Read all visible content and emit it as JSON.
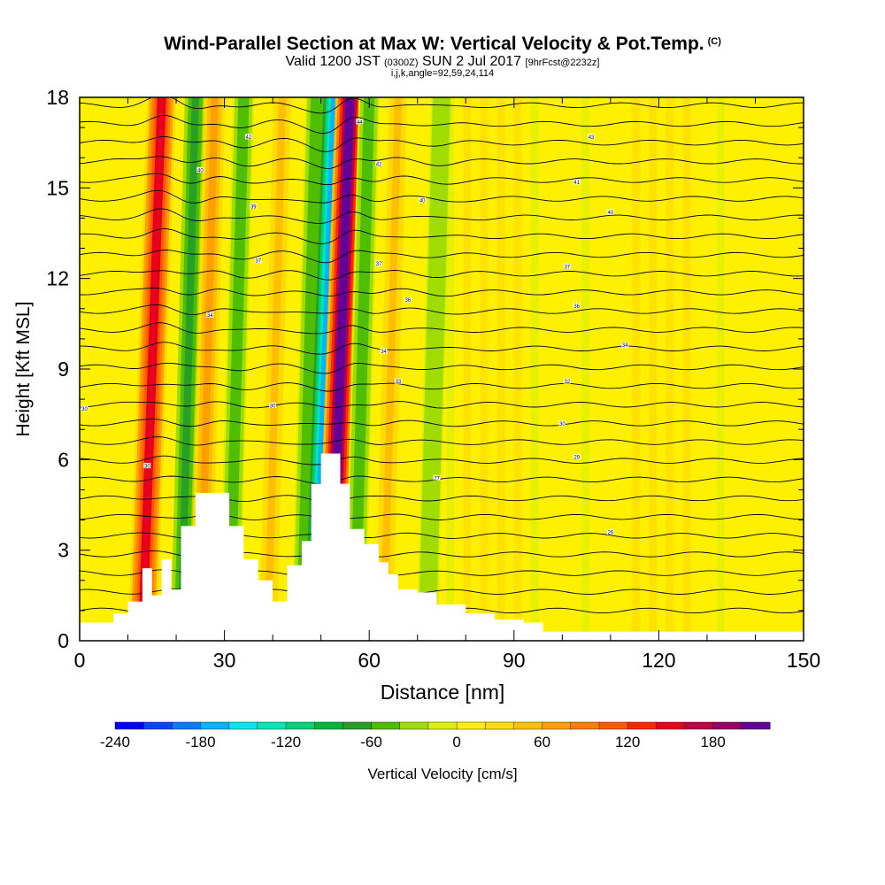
{
  "title": {
    "main": "Wind-Parallel Section at Max W: Vertical Velocity & Pot.Temp.",
    "copyright": "(C)",
    "line2_a": "Valid 1200 JST",
    "line2_b": "(0300Z)",
    "line2_c": "SUN 2 Jul 2017",
    "line2_d": "[9hrFcst@2232z]",
    "line3": "i,j,k,angle=92,59,24,114"
  },
  "chart_data": {
    "type": "heatmap",
    "xlabel": "Distance [nm]",
    "ylabel": "Height [Kft MSL]",
    "xlim": [
      0,
      150
    ],
    "ylim": [
      0,
      18
    ],
    "xticks": [
      0,
      30,
      60,
      90,
      120,
      150
    ],
    "yticks": [
      0,
      3,
      6,
      9,
      12,
      15,
      18
    ],
    "colorbar": {
      "label": "Vertical Velocity [cm/s]",
      "range": [
        -240,
        220
      ],
      "step": 20,
      "ticks": [
        -240,
        -180,
        -120,
        -60,
        0,
        60,
        120,
        180
      ],
      "colors": [
        "#0000ff",
        "#0a46ff",
        "#0a7aff",
        "#00b4ff",
        "#00e6f0",
        "#00e6b4",
        "#00d278",
        "#00b43c",
        "#28a028",
        "#50be00",
        "#a0dc00",
        "#dcf000",
        "#fff000",
        "#ffdc00",
        "#ffbe00",
        "#ffa000",
        "#ff7d00",
        "#ff5a00",
        "#ff2800",
        "#e6001e",
        "#be0046",
        "#960064",
        "#640096"
      ]
    },
    "w_bands_x_nm": [
      {
        "x": 17,
        "w": 140,
        "note": "strong updraft band"
      },
      {
        "x": 24,
        "w": -70
      },
      {
        "x": 28,
        "w": 60
      },
      {
        "x": 34,
        "w": -60
      },
      {
        "x": 42,
        "w": 40
      },
      {
        "x": 49,
        "w": -50
      },
      {
        "x": 53,
        "w": -170,
        "note": "strong downdraft band"
      },
      {
        "x": 56,
        "w": 200,
        "note": "strong updraft band"
      },
      {
        "x": 60,
        "w": -60
      },
      {
        "x": 66,
        "w": 40
      },
      {
        "x": 75,
        "w": -40
      }
    ],
    "terrain_kft": [
      [
        0,
        0.6
      ],
      [
        7,
        0.9
      ],
      [
        10,
        1.3
      ],
      [
        13,
        2.4
      ],
      [
        15,
        1.5
      ],
      [
        17,
        2.7
      ],
      [
        19,
        1.7
      ],
      [
        21,
        3.8
      ],
      [
        24,
        4.9
      ],
      [
        29,
        4.9
      ],
      [
        31,
        3.8
      ],
      [
        34,
        2.7
      ],
      [
        37,
        2.0
      ],
      [
        40,
        1.3
      ],
      [
        43,
        2.5
      ],
      [
        46,
        3.3
      ],
      [
        48,
        5.2
      ],
      [
        50,
        6.2
      ],
      [
        52,
        6.2
      ],
      [
        54,
        5.2
      ],
      [
        56,
        3.7
      ],
      [
        59,
        3.2
      ],
      [
        62,
        2.6
      ],
      [
        64,
        2.2
      ],
      [
        66,
        1.7
      ],
      [
        70,
        1.6
      ],
      [
        74,
        1.2
      ],
      [
        80,
        0.9
      ],
      [
        86,
        0.7
      ],
      [
        92,
        0.6
      ],
      [
        96,
        0.3
      ],
      [
        110,
        0.3
      ],
      [
        150,
        0.3
      ]
    ],
    "theta_contour_labels": [
      {
        "x": 1,
        "y": 7.7,
        "text": "30"
      },
      {
        "x": 14,
        "y": 5.8,
        "text": "30"
      },
      {
        "x": 25,
        "y": 15.6,
        "text": "40"
      },
      {
        "x": 27,
        "y": 10.8,
        "text": "34"
      },
      {
        "x": 35,
        "y": 16.7,
        "text": "42"
      },
      {
        "x": 36,
        "y": 14.4,
        "text": "39"
      },
      {
        "x": 37,
        "y": 12.6,
        "text": "37"
      },
      {
        "x": 40,
        "y": 7.8,
        "text": "30"
      },
      {
        "x": 58,
        "y": 17.2,
        "text": "44"
      },
      {
        "x": 62,
        "y": 15.8,
        "text": "42"
      },
      {
        "x": 62,
        "y": 12.5,
        "text": "37"
      },
      {
        "x": 63,
        "y": 9.6,
        "text": "34"
      },
      {
        "x": 66,
        "y": 8.6,
        "text": "33"
      },
      {
        "x": 68,
        "y": 11.3,
        "text": "36"
      },
      {
        "x": 71,
        "y": 14.6,
        "text": "40"
      },
      {
        "x": 74,
        "y": 5.4,
        "text": "27"
      },
      {
        "x": 100,
        "y": 7.2,
        "text": "30"
      },
      {
        "x": 101,
        "y": 8.6,
        "text": "32"
      },
      {
        "x": 101,
        "y": 12.4,
        "text": "37"
      },
      {
        "x": 103,
        "y": 11.1,
        "text": "36"
      },
      {
        "x": 103,
        "y": 6.1,
        "text": "29"
      },
      {
        "x": 103,
        "y": 15.2,
        "text": "41"
      },
      {
        "x": 106,
        "y": 16.7,
        "text": "43"
      },
      {
        "x": 110,
        "y": 14.2,
        "text": "40"
      },
      {
        "x": 110,
        "y": 3.6,
        "text": "26"
      },
      {
        "x": 113,
        "y": 9.8,
        "text": "34"
      }
    ]
  }
}
